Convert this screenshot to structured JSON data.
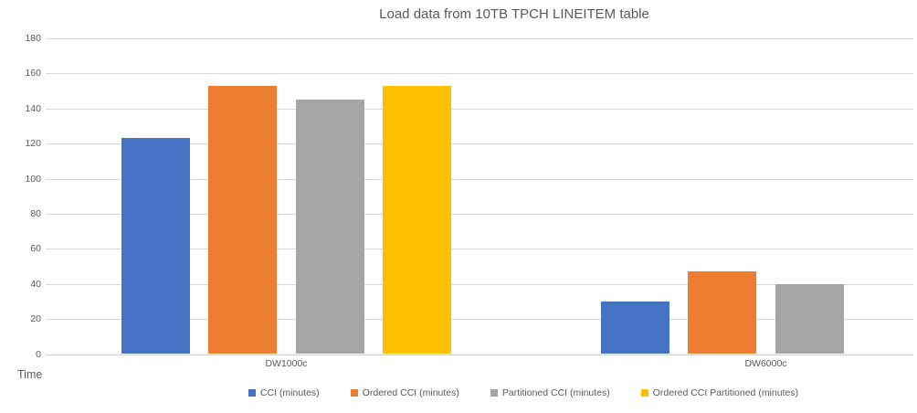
{
  "title": "Load data from 10TB TPCH LINEITEM table",
  "chart_data": {
    "type": "bar",
    "title": "Load data from 10TB TPCH LINEITEM table",
    "xlabel": "",
    "ylabel": "Time",
    "ylim": [
      0,
      180
    ],
    "y_ticks": [
      0,
      20,
      40,
      60,
      80,
      100,
      120,
      140,
      160,
      180
    ],
    "grid": true,
    "legend_position": "bottom",
    "categories": [
      "DW1000c",
      "DW6000c"
    ],
    "series": [
      {
        "name": "CCI (minutes)",
        "color": "#4472C4",
        "values": [
          123,
          30
        ]
      },
      {
        "name": "Ordered CCI (minutes)",
        "color": "#ED7D31",
        "values": [
          153,
          47
        ]
      },
      {
        "name": "Partitioned CCI (minutes)",
        "color": "#A5A5A5",
        "values": [
          145,
          40
        ]
      },
      {
        "name": "Ordered CCI Partitioned (minutes)",
        "color": "#FFC000",
        "values": [
          153,
          null
        ]
      }
    ]
  },
  "colors": {
    "background": "#FFFFFF",
    "gridline": "#D9D9D9",
    "text": "#595959",
    "series_blue": "#4472C4",
    "series_orange": "#ED7D31",
    "series_gray": "#A5A5A5",
    "series_yellow": "#FFC000"
  }
}
